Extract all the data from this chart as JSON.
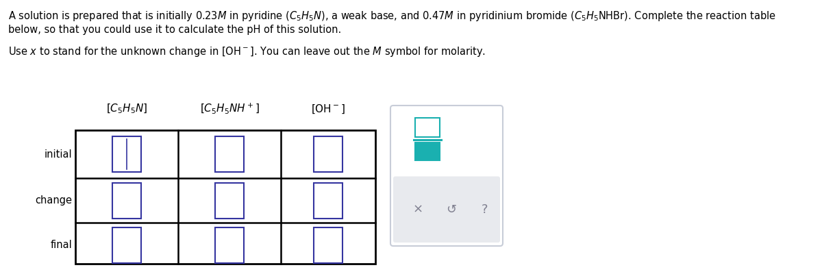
{
  "bg_color": "#ffffff",
  "table_border_color": "#000000",
  "cell_border_color": "#3535a0",
  "panel_border_color": "#c8cdd8",
  "panel_gray_bg": "#e8eaee",
  "teal_color": "#1ab0b0",
  "teal_dark": "#18a0a0",
  "symbol_color": "#808090",
  "row_labels": [
    "initial",
    "change",
    "final"
  ],
  "figsize": [
    12.0,
    3.97
  ],
  "dpi": 100
}
